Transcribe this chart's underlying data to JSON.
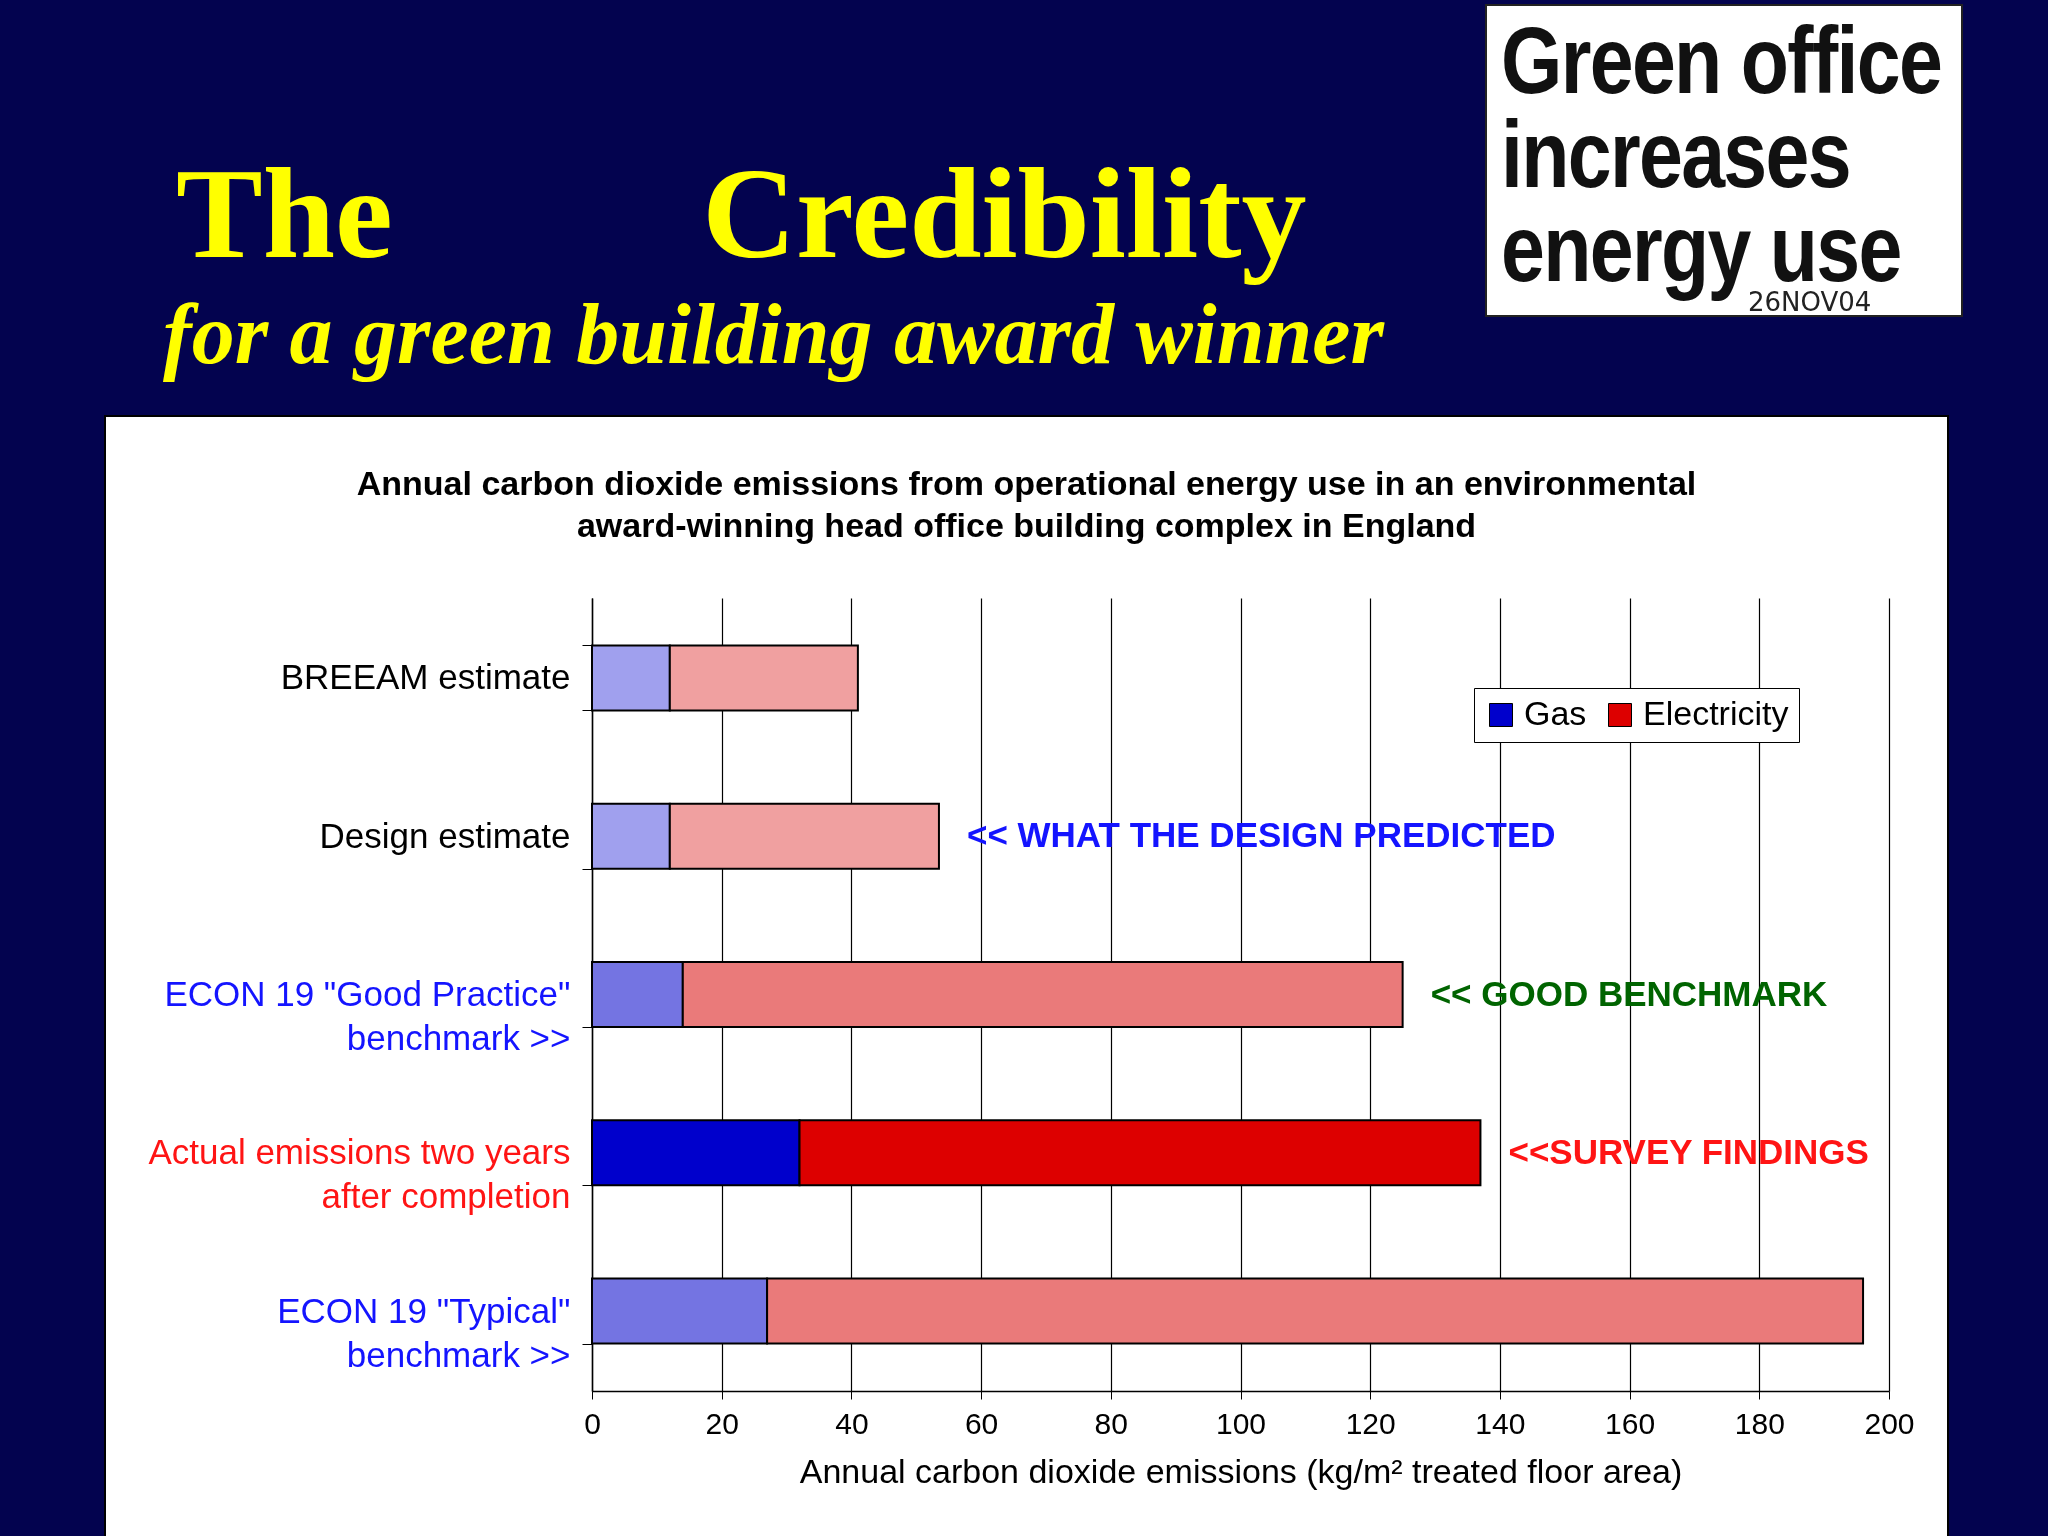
{
  "chart_data": {
    "type": "bar",
    "orientation": "horizontal",
    "stacked": true,
    "title": "The Credibility",
    "subtitle": "for a green building award winner",
    "xlabel": "Annual carbon dioxide emissions (kg/m² treated floor area)",
    "categories": [
      "BREEAM estimate",
      "Design estimate",
      "ECON 19 \"Good Practice\" benchmark >>",
      "Actual emissions two years after completion",
      "ECON 19 \"Typical\" benchmark >>"
    ],
    "series": [
      {
        "name": "Gas",
        "color": "#0000cc",
        "colors": [
          "#a0a0ee",
          "#a0a0ee",
          "#7474e2",
          "#0000cc",
          "#7474e2"
        ],
        "values": [
          12,
          12,
          14,
          32,
          27
        ]
      },
      {
        "name": "Electricity",
        "color": "#dd0000",
        "colors": [
          "#f0a0a0",
          "#f0a0a0",
          "#ea7a7a",
          "#dd0000",
          "#ea7a7a"
        ],
        "values": [
          29,
          41.5,
          111,
          105,
          169
        ]
      }
    ],
    "xlim": [
      0,
      200
    ],
    "xticks": [
      0,
      20,
      40,
      60,
      80,
      100,
      120,
      140,
      160,
      180,
      200
    ],
    "grid": "x",
    "legend": "top right",
    "annotations": [
      "Annual carbon dioxide emissions from operational energy use in an environmental award-winning head office building complex in England",
      "Green office increases energy use",
      "26NOV04",
      {
        "text": "<< WHAT THE DESIGN PREDICTED",
        "x": 53.5,
        "y": "Design estimate"
      },
      {
        "text": "<< GOOD BENCHMARK",
        "x": 125,
        "y": "ECON 19 \"Good Practice\" benchmark >>"
      },
      {
        "text": "<<SURVEY FINDINGS",
        "x": 137,
        "y": "Actual emissions two years after completion"
      }
    ]
  }
}
